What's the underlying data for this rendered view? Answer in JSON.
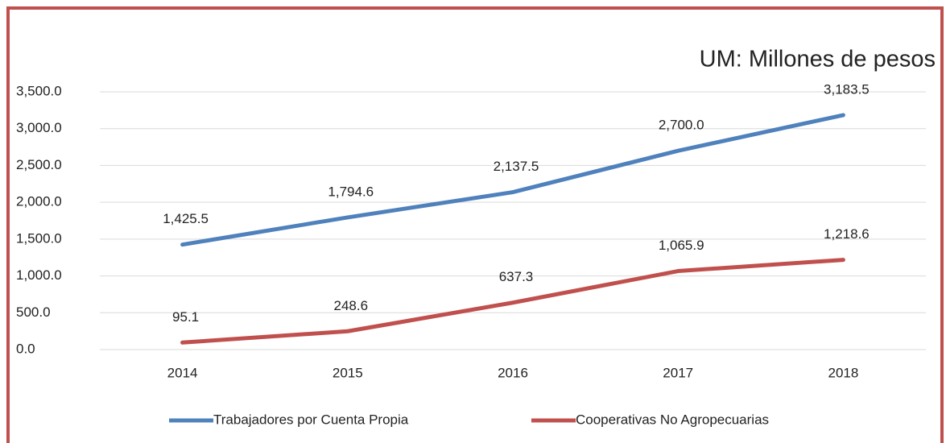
{
  "chart_data": {
    "type": "line",
    "title": "UM: Millones de pesos",
    "categories": [
      "2014",
      "2015",
      "2016",
      "2017",
      "2018"
    ],
    "series": [
      {
        "name": "Trabajadores por Cuenta Propia",
        "color": "#4f81bd",
        "values": [
          1425.5,
          1794.6,
          2137.5,
          2700.0,
          3183.5
        ],
        "value_labels": [
          "1,425.5",
          "1,794.6",
          "2,137.5",
          "2,700.0",
          "3,183.5"
        ]
      },
      {
        "name": "Cooperativas No Agropecuarias",
        "color": "#c0504d",
        "values": [
          95.1,
          248.6,
          637.3,
          1065.9,
          1218.6
        ],
        "value_labels": [
          "95.1",
          "248.6",
          "637.3",
          "1,065.9",
          "1,218.6"
        ]
      }
    ],
    "ylim": [
      0,
      3500
    ],
    "yticks": [
      {
        "value": 0,
        "label": "0.0"
      },
      {
        "value": 500,
        "label": "500.0"
      },
      {
        "value": 1000,
        "label": "1,000.0"
      },
      {
        "value": 1500,
        "label": "1,500.0"
      },
      {
        "value": 2000,
        "label": "2,000.0"
      },
      {
        "value": 2500,
        "label": "2,500.0"
      },
      {
        "value": 3000,
        "label": "3,000.0"
      },
      {
        "value": 3500,
        "label": "3,500.0"
      }
    ],
    "grid": true,
    "legend": "bottom"
  }
}
